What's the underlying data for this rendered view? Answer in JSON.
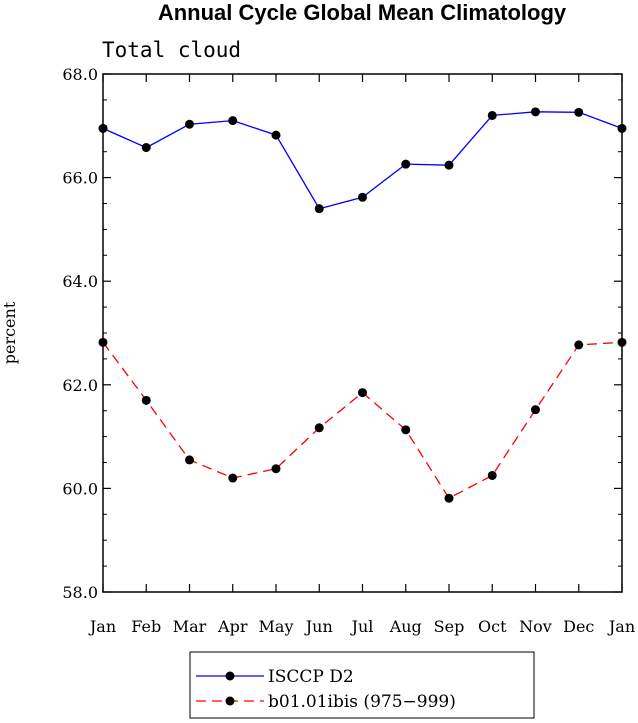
{
  "chart_data": {
    "type": "line",
    "title": "Annual Cycle Global Mean Climatology",
    "subtitle": "Total cloud",
    "xlabel": "",
    "ylabel": "percent",
    "categories": [
      "Jan",
      "Feb",
      "Mar",
      "Apr",
      "May",
      "Jun",
      "Jul",
      "Aug",
      "Sep",
      "Oct",
      "Nov",
      "Dec",
      "Jan"
    ],
    "ylim": [
      58.0,
      68.0
    ],
    "yticks": [
      "58.0",
      "60.0",
      "62.0",
      "64.0",
      "66.0",
      "68.0"
    ],
    "series": [
      {
        "name": "ISCCP D2",
        "color": "#0000ff",
        "dash": "solid",
        "marker": "circle",
        "values": [
          66.95,
          66.58,
          67.03,
          67.1,
          66.82,
          65.4,
          65.62,
          66.26,
          66.24,
          67.2,
          67.27,
          67.26,
          66.95
        ]
      },
      {
        "name": "b01.01ibis (975−999)",
        "color": "#ff0000",
        "dash": "dashed",
        "marker": "circle",
        "values": [
          62.82,
          61.7,
          60.55,
          60.2,
          60.38,
          61.17,
          61.85,
          61.13,
          59.81,
          60.25,
          61.52,
          62.77,
          62.82
        ]
      }
    ],
    "grid": false,
    "legend_position": "bottom-center"
  }
}
